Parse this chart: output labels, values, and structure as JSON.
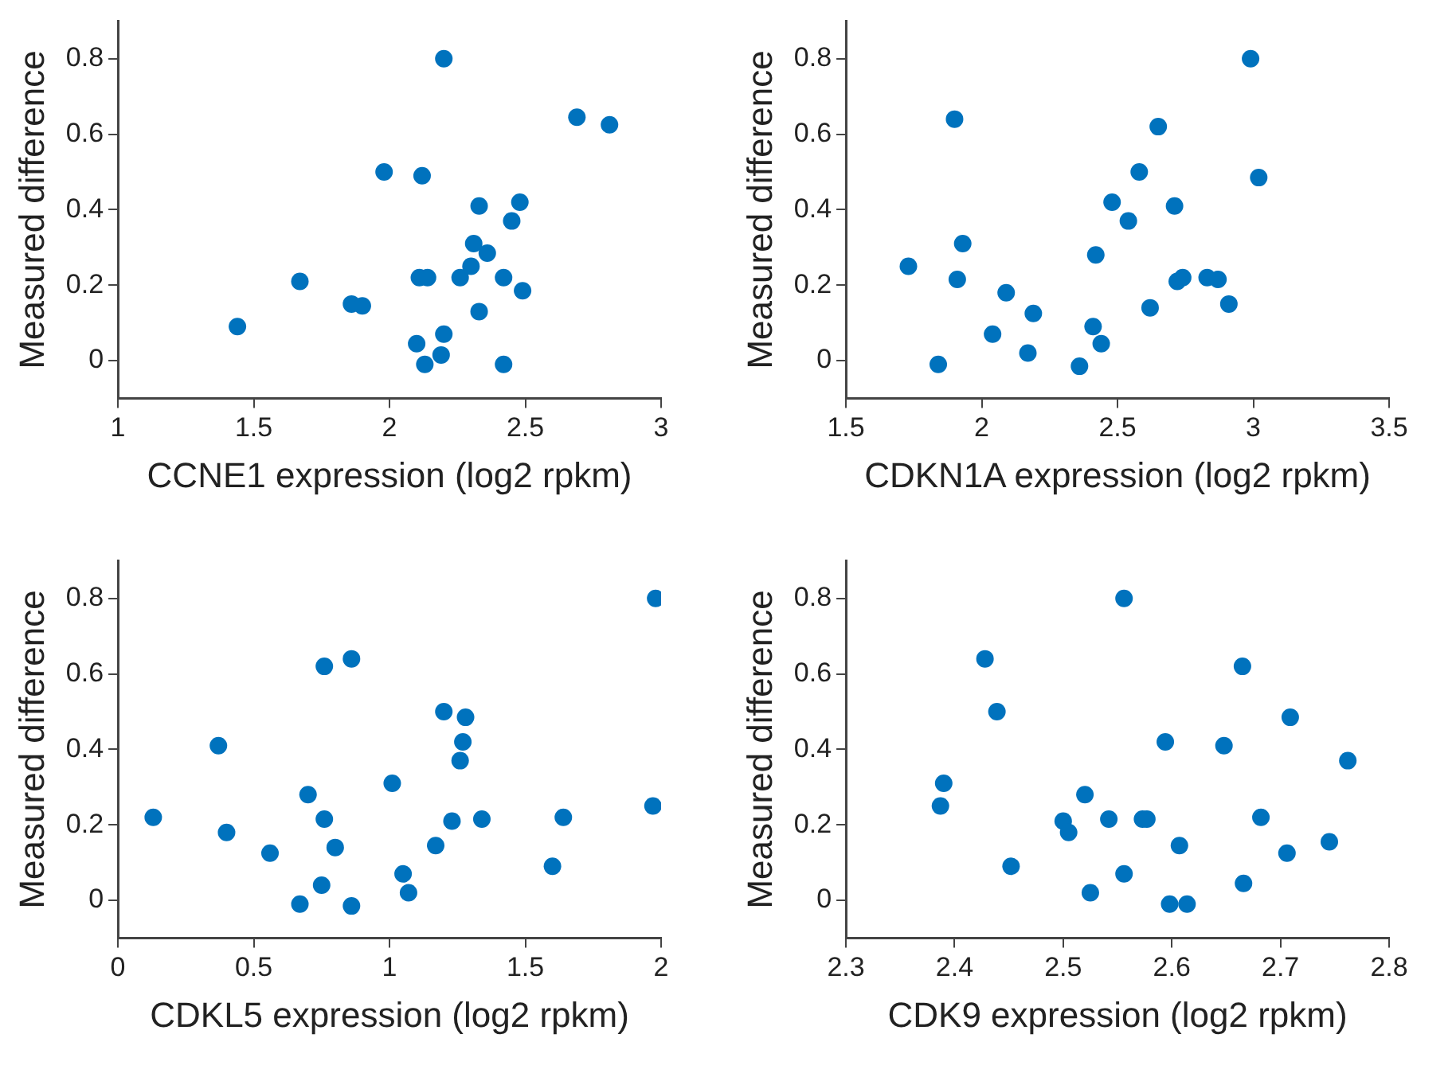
{
  "chart_data": [
    {
      "type": "scatter",
      "xlabel": "CCNE1 expression (log2 rpkm)",
      "ylabel": "Measured difference",
      "xlim": [
        1,
        3
      ],
      "xticks": [
        1,
        1.5,
        2,
        2.5,
        3
      ],
      "ylim": [
        -0.1,
        0.9
      ],
      "yticks": [
        0,
        0.2,
        0.4,
        0.6,
        0.8
      ],
      "grid": false,
      "marker": "circle",
      "legend": false,
      "series": [
        {
          "color": "#0072bd",
          "x": [
            1.44,
            1.67,
            1.86,
            1.9,
            1.98,
            2.12,
            2.2,
            2.1,
            2.13,
            2.19,
            2.2,
            2.11,
            2.14,
            2.26,
            2.3,
            2.31,
            2.36,
            2.33,
            2.33,
            2.42,
            2.45,
            2.48,
            2.49,
            2.42,
            2.69,
            2.81
          ],
          "values": [
            0.09,
            0.21,
            0.15,
            0.145,
            0.5,
            0.49,
            0.8,
            0.045,
            -0.01,
            0.015,
            0.07,
            0.22,
            0.22,
            0.22,
            0.25,
            0.31,
            0.285,
            0.41,
            0.13,
            0.22,
            0.37,
            0.42,
            0.185,
            -0.01,
            0.645,
            0.625
          ]
        }
      ]
    },
    {
      "type": "scatter",
      "xlabel": "CDKN1A expression (log2 rpkm)",
      "ylabel": "Measured difference",
      "xlim": [
        1.5,
        3.5
      ],
      "xticks": [
        1.5,
        2,
        2.5,
        3,
        3.5
      ],
      "ylim": [
        -0.1,
        0.9
      ],
      "yticks": [
        0,
        0.2,
        0.4,
        0.6,
        0.8
      ],
      "grid": false,
      "marker": "circle",
      "legend": false,
      "series": [
        {
          "color": "#0072bd",
          "x": [
            1.73,
            1.84,
            1.9,
            1.91,
            1.93,
            2.04,
            2.09,
            2.17,
            2.19,
            2.36,
            2.41,
            2.42,
            2.44,
            2.48,
            2.54,
            2.58,
            2.62,
            2.65,
            2.71,
            2.72,
            2.74,
            2.83,
            2.87,
            2.91,
            2.99,
            3.02
          ],
          "values": [
            0.25,
            -0.01,
            0.64,
            0.215,
            0.31,
            0.07,
            0.18,
            0.02,
            0.125,
            -0.015,
            0.09,
            0.28,
            0.045,
            0.42,
            0.37,
            0.5,
            0.14,
            0.62,
            0.41,
            0.21,
            0.22,
            0.22,
            0.215,
            0.15,
            0.8,
            0.485
          ]
        }
      ]
    },
    {
      "type": "scatter",
      "xlabel": "CDKL5 expression (log2 rpkm)",
      "ylabel": "Measured difference",
      "xlim": [
        0,
        2
      ],
      "xticks": [
        0,
        0.5,
        1,
        1.5,
        2
      ],
      "ylim": [
        -0.1,
        0.9
      ],
      "yticks": [
        0,
        0.2,
        0.4,
        0.6,
        0.8
      ],
      "grid": false,
      "marker": "circle",
      "legend": false,
      "series": [
        {
          "color": "#0072bd",
          "x": [
            0.13,
            0.37,
            0.4,
            0.56,
            0.67,
            0.7,
            0.75,
            0.76,
            0.76,
            0.8,
            0.86,
            0.86,
            1.01,
            1.05,
            1.07,
            1.17,
            1.2,
            1.23,
            1.26,
            1.27,
            1.28,
            1.34,
            1.6,
            1.64,
            1.97,
            1.98
          ],
          "values": [
            0.22,
            0.41,
            0.18,
            0.125,
            -0.01,
            0.28,
            0.04,
            0.62,
            0.215,
            0.14,
            -0.015,
            0.64,
            0.31,
            0.07,
            0.02,
            0.145,
            0.5,
            0.21,
            0.37,
            0.42,
            0.485,
            0.215,
            0.09,
            0.22,
            0.25,
            0.8
          ]
        }
      ]
    },
    {
      "type": "scatter",
      "xlabel": "CDK9 expression (log2 rpkm)",
      "ylabel": "Measured difference",
      "xlim": [
        2.3,
        2.8
      ],
      "xticks": [
        2.3,
        2.4,
        2.5,
        2.6,
        2.7,
        2.8
      ],
      "ylim": [
        -0.1,
        0.9
      ],
      "yticks": [
        0,
        0.2,
        0.4,
        0.6,
        0.8
      ],
      "grid": false,
      "marker": "circle",
      "legend": false,
      "series": [
        {
          "color": "#0072bd",
          "x": [
            2.387,
            2.39,
            2.428,
            2.439,
            2.452,
            2.5,
            2.505,
            2.52,
            2.525,
            2.542,
            2.556,
            2.556,
            2.573,
            2.577,
            2.594,
            2.598,
            2.607,
            2.614,
            2.648,
            2.665,
            2.666,
            2.682,
            2.706,
            2.709,
            2.745,
            2.762
          ],
          "values": [
            0.25,
            0.31,
            0.64,
            0.5,
            0.09,
            0.21,
            0.18,
            0.28,
            0.02,
            0.215,
            0.8,
            0.07,
            0.215,
            0.215,
            0.42,
            -0.01,
            0.145,
            -0.01,
            0.41,
            0.62,
            0.045,
            0.22,
            0.125,
            0.485,
            0.155,
            0.37
          ]
        }
      ]
    }
  ]
}
